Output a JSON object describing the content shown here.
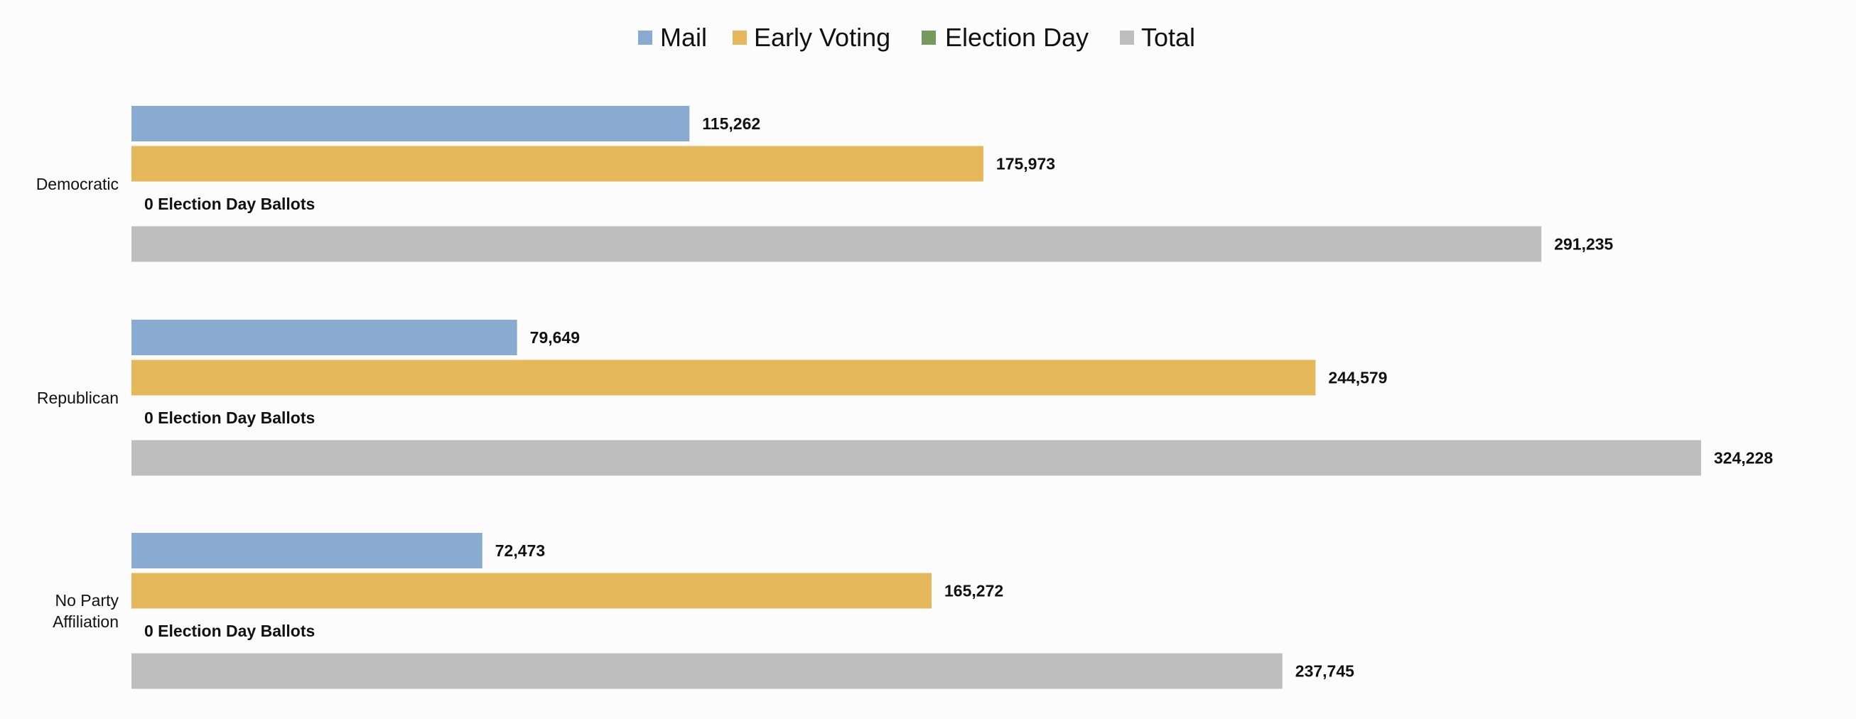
{
  "chart_data": {
    "type": "bar",
    "orientation": "horizontal",
    "categories": [
      [
        "Democratic"
      ],
      [
        "Republican"
      ],
      [
        "No Party",
        "Affiliation"
      ]
    ],
    "series": [
      {
        "name": "Mail",
        "color": "#8aabd1",
        "values": [
          115262,
          79649,
          72473
        ],
        "labels": [
          "115,262",
          "79,649",
          "72,473"
        ]
      },
      {
        "name": "Early Voting",
        "color": "#e6b85c",
        "values": [
          175973,
          244579,
          165272
        ],
        "labels": [
          "175,973",
          "244,579",
          "165,272"
        ]
      },
      {
        "name": "Election Day",
        "color": "#76995c",
        "values": [
          0,
          0,
          0
        ],
        "labels": [
          "0 Election Day Ballots",
          "0 Election Day Ballots",
          "0 Election Day Ballots"
        ]
      },
      {
        "name": "Total",
        "color": "#bebebe",
        "values": [
          291235,
          324228,
          237745
        ],
        "labels": [
          "291,235",
          "324,228",
          "237,745"
        ]
      }
    ],
    "xlim": [
      0,
      330000
    ],
    "grid": false,
    "legend_position": "top-center"
  }
}
